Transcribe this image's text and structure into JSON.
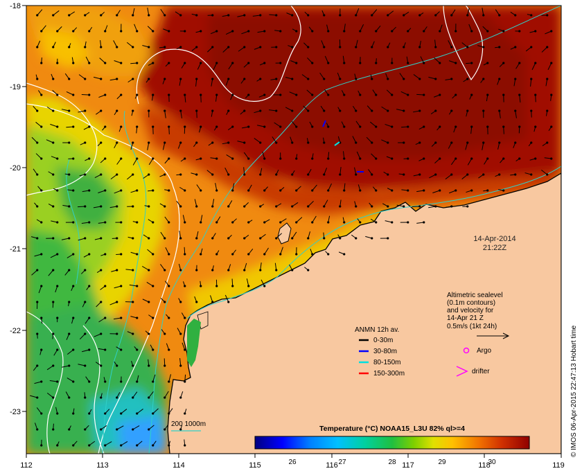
{
  "map": {
    "lon_ticks": [
      "112",
      "113",
      "114",
      "115",
      "116",
      "117",
      "118",
      "119"
    ],
    "lat_ticks": [
      "-18",
      "-19",
      "-20",
      "-21",
      "-22",
      "-23"
    ],
    "timestamp_date": "14-Apr-2014",
    "timestamp_time": "21:22Z",
    "credit": "© IMOS 06-Apr-2015 22:47:13 Hobart time",
    "colors": {
      "land": "#f8c8a0",
      "coastline": "#000000",
      "contour_sealevel": "#ffffff",
      "isobath": "#30d0c8",
      "vector": "#000000"
    }
  },
  "altimetry": {
    "lines": [
      "Altimetric sealevel",
      "(0.1m contours)",
      "and velocity for",
      "14-Apr 21 Z",
      "0.5m/s (1kt 24h)"
    ]
  },
  "legend": {
    "title": "ANMN 12h av.",
    "items": [
      {
        "label": "0-30m",
        "color": "#000000"
      },
      {
        "label": "30-80m",
        "color": "#0000ff"
      },
      {
        "label": "80-150m",
        "color": "#00e0e0"
      },
      {
        "label": "150-300m",
        "color": "#ff0000"
      }
    ],
    "argo_label": "Argo",
    "argo_color": "#ff00ff",
    "drifter_label": "drifter",
    "drifter_color": "#ff00ff"
  },
  "bathy": {
    "label": "200  1000m"
  },
  "colorbar": {
    "title": "Temperature (°C) NOAA15_L3U 82% ql>=4",
    "ticks": [
      "26",
      "27",
      "28",
      "29",
      "30"
    ],
    "range": [
      25,
      30.5
    ]
  }
}
